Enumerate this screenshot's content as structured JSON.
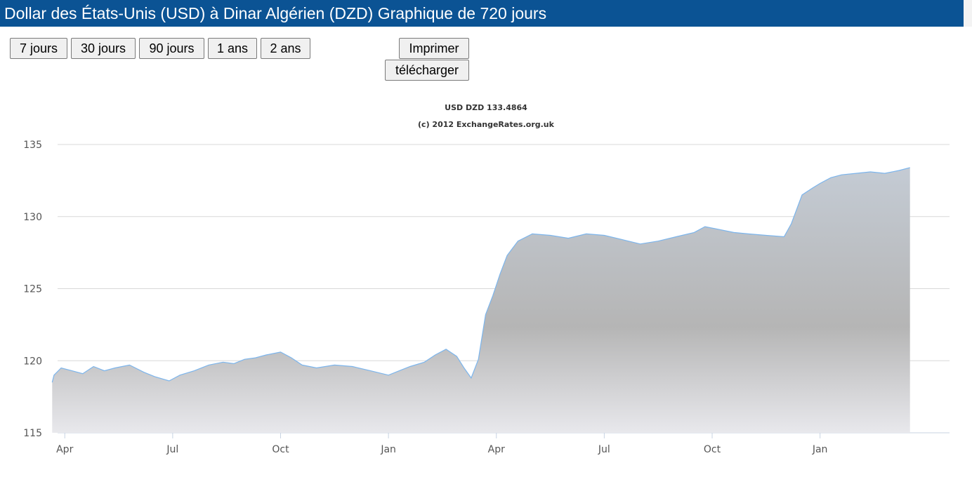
{
  "header": {
    "title": "Dollar des États-Unis (USD) à Dinar Algérien (DZD) Graphique de 720 jours"
  },
  "toolbar": {
    "ranges": [
      "7 jours",
      "30 jours",
      "90 jours",
      "1 ans",
      "2 ans"
    ],
    "print_label": "Imprimer",
    "download_label": "télécharger"
  },
  "colors": {
    "header_bg": "#0b5394",
    "line": "#7cb5ec",
    "fill": "#b3b3b3",
    "grid": "#d8d8d8"
  },
  "chart_data": {
    "type": "area",
    "title": "USD DZD 133.4864",
    "subtitle": "(c) 2012 ExchangeRates.org.uk",
    "xlabel": "",
    "ylabel": "",
    "ylim": [
      115,
      135
    ],
    "y_ticks": [
      115,
      120,
      125,
      130,
      135
    ],
    "x_range": [
      -0.2,
      24.6
    ],
    "x_ticks": [
      {
        "label": "Apr",
        "x": 0
      },
      {
        "label": "Jul",
        "x": 3
      },
      {
        "label": "Oct",
        "x": 6
      },
      {
        "label": "Jan",
        "x": 9
      },
      {
        "label": "Apr",
        "x": 12
      },
      {
        "label": "Jul",
        "x": 15
      },
      {
        "label": "Oct",
        "x": 18
      },
      {
        "label": "Jan",
        "x": 21
      }
    ],
    "grid": true,
    "legend": "none",
    "series": [
      {
        "points": [
          [
            -0.35,
            118.5
          ],
          [
            -0.3,
            119.0
          ],
          [
            -0.1,
            119.5
          ],
          [
            0.2,
            119.3
          ],
          [
            0.5,
            119.1
          ],
          [
            0.8,
            119.6
          ],
          [
            1.1,
            119.3
          ],
          [
            1.4,
            119.5
          ],
          [
            1.8,
            119.7
          ],
          [
            2.2,
            119.2
          ],
          [
            2.5,
            118.9
          ],
          [
            2.9,
            118.6
          ],
          [
            3.2,
            119.0
          ],
          [
            3.6,
            119.3
          ],
          [
            4.0,
            119.7
          ],
          [
            4.4,
            119.9
          ],
          [
            4.7,
            119.8
          ],
          [
            5.0,
            120.1
          ],
          [
            5.3,
            120.2
          ],
          [
            5.6,
            120.4
          ],
          [
            6.0,
            120.6
          ],
          [
            6.3,
            120.2
          ],
          [
            6.6,
            119.7
          ],
          [
            7.0,
            119.5
          ],
          [
            7.5,
            119.7
          ],
          [
            8.0,
            119.6
          ],
          [
            8.5,
            119.3
          ],
          [
            9.0,
            119.0
          ],
          [
            9.3,
            119.3
          ],
          [
            9.6,
            119.6
          ],
          [
            10.0,
            119.9
          ],
          [
            10.3,
            120.4
          ],
          [
            10.6,
            120.8
          ],
          [
            10.9,
            120.3
          ],
          [
            11.1,
            119.5
          ],
          [
            11.3,
            118.8
          ],
          [
            11.5,
            120.1
          ],
          [
            11.7,
            123.2
          ],
          [
            11.9,
            124.5
          ],
          [
            12.1,
            126.0
          ],
          [
            12.3,
            127.3
          ],
          [
            12.6,
            128.3
          ],
          [
            13.0,
            128.8
          ],
          [
            13.5,
            128.7
          ],
          [
            14.0,
            128.5
          ],
          [
            14.5,
            128.8
          ],
          [
            15.0,
            128.7
          ],
          [
            15.5,
            128.4
          ],
          [
            16.0,
            128.1
          ],
          [
            16.5,
            128.3
          ],
          [
            17.0,
            128.6
          ],
          [
            17.5,
            128.9
          ],
          [
            17.8,
            129.3
          ],
          [
            18.2,
            129.1
          ],
          [
            18.6,
            128.9
          ],
          [
            19.0,
            128.8
          ],
          [
            19.5,
            128.7
          ],
          [
            20.0,
            128.6
          ],
          [
            20.2,
            129.5
          ],
          [
            20.5,
            131.5
          ],
          [
            20.8,
            132.0
          ],
          [
            21.0,
            132.3
          ],
          [
            21.3,
            132.7
          ],
          [
            21.6,
            132.9
          ],
          [
            22.0,
            133.0
          ],
          [
            22.4,
            133.1
          ],
          [
            22.8,
            133.0
          ],
          [
            23.2,
            133.2
          ],
          [
            23.5,
            133.4
          ]
        ]
      }
    ]
  }
}
